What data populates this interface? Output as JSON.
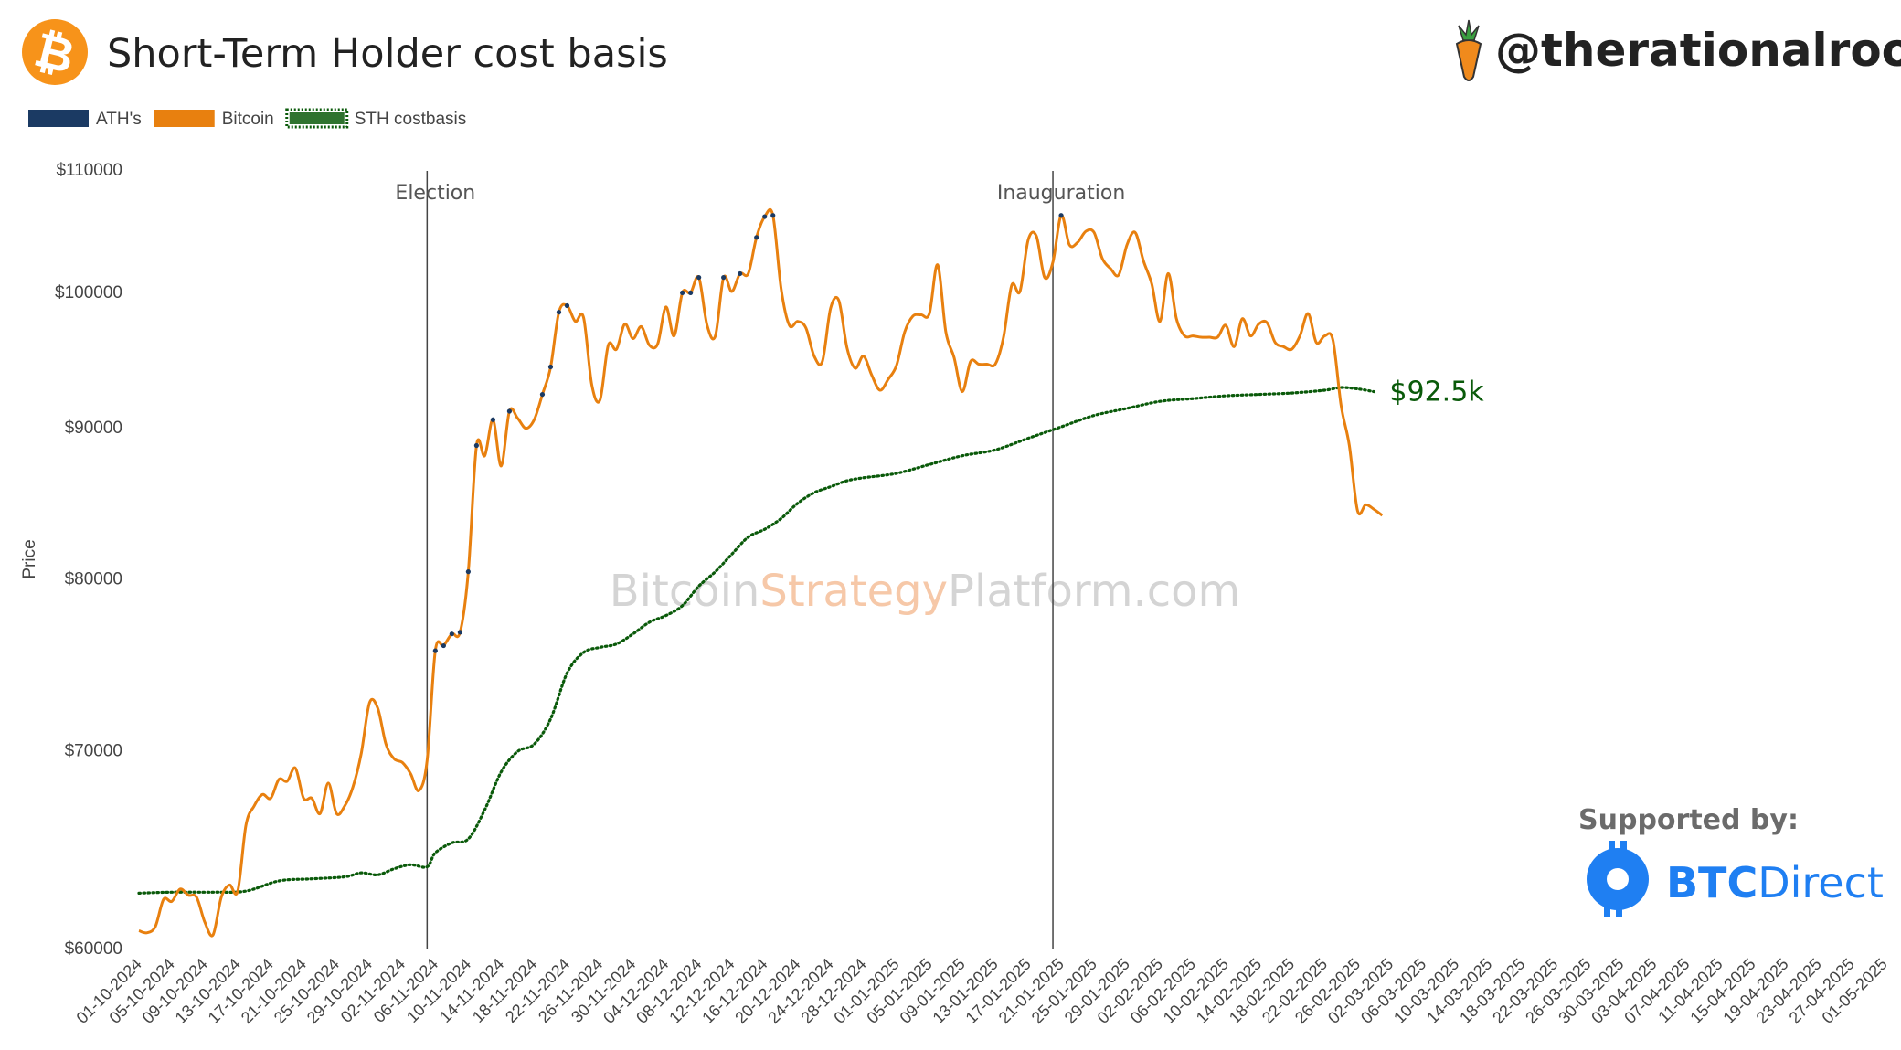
{
  "header": {
    "title": "Short-Term Holder cost basis",
    "logo_icon": "bitcoin-logo-icon",
    "handle": "@therationalroot",
    "handle_icon": "carrot-icon"
  },
  "watermark": {
    "parts": [
      "Bitcoin",
      "Strategy",
      "Platform",
      ".com"
    ]
  },
  "sponsor": {
    "supported_label": "Supported by:",
    "name_part1": "BTC",
    "name_part2": "Direct",
    "icon": "btcdirect-logo-icon"
  },
  "colors": {
    "bitcoin": "#e8800f",
    "sth": "#0a5a0a",
    "ath": "#1b3a63",
    "accent_orange": "#f7931a",
    "sponsor_blue": "#1f7ff2"
  },
  "chart_data": {
    "type": "line",
    "title": "Short-Term Holder cost basis",
    "ylabel": "Price",
    "xlabel": "",
    "y_scale": "log",
    "ylim": [
      60000,
      110000
    ],
    "yticks": [
      60000,
      70000,
      80000,
      90000,
      100000,
      110000
    ],
    "ytick_labels": [
      "$60000",
      "$70000",
      "$80000",
      "$90000",
      "$100000",
      "$110000"
    ],
    "xlim": [
      "2024-10-01",
      "2025-05-01"
    ],
    "xtick_labels": [
      "01-10-2024",
      "05-10-2024",
      "09-10-2024",
      "13-10-2024",
      "17-10-2024",
      "21-10-2024",
      "25-10-2024",
      "29-10-2024",
      "02-11-2024",
      "06-11-2024",
      "10-11-2024",
      "14-11-2024",
      "18-11-2024",
      "22-11-2024",
      "26-11-2024",
      "30-11-2024",
      "04-12-2024",
      "08-12-2024",
      "12-12-2024",
      "16-12-2024",
      "20-12-2024",
      "24-12-2024",
      "28-12-2024",
      "01-01-2025",
      "05-01-2025",
      "09-01-2025",
      "13-01-2025",
      "17-01-2025",
      "21-01-2025",
      "25-01-2025",
      "29-01-2025",
      "02-02-2025",
      "06-02-2025",
      "10-02-2025",
      "14-02-2025",
      "18-02-2025",
      "22-02-2025",
      "26-02-2025",
      "02-03-2025",
      "06-03-2025",
      "10-03-2025",
      "14-03-2025",
      "18-03-2025",
      "22-03-2025",
      "26-03-2025",
      "30-03-2025",
      "03-04-2025",
      "07-04-2025",
      "11-04-2025",
      "15-04-2025",
      "19-04-2025",
      "23-04-2025",
      "27-04-2025",
      "01-05-2025"
    ],
    "legend": {
      "placement": "top-left",
      "entries": [
        {
          "name": "ATH's",
          "color": "#1b3a63",
          "style": "solid"
        },
        {
          "name": "Bitcoin",
          "color": "#e8800f",
          "style": "solid"
        },
        {
          "name": "STH costbasis",
          "color": "#0a5a0a",
          "style": "dotted"
        }
      ]
    },
    "annotations": [
      {
        "label": "Election",
        "x": "2024-11-05"
      },
      {
        "label": "Inauguration",
        "x": "2025-01-20"
      }
    ],
    "end_label": {
      "text": "$92.5k",
      "series": "STH costbasis"
    },
    "series": [
      {
        "name": "Bitcoin",
        "color": "#e8800f",
        "points": [
          [
            "2024-10-01",
            60800
          ],
          [
            "2024-10-02",
            60700
          ],
          [
            "2024-10-03",
            61000
          ],
          [
            "2024-10-04",
            62300
          ],
          [
            "2024-10-05",
            62200
          ],
          [
            "2024-10-06",
            62800
          ],
          [
            "2024-10-07",
            62500
          ],
          [
            "2024-10-08",
            62400
          ],
          [
            "2024-10-09",
            61200
          ],
          [
            "2024-10-10",
            60600
          ],
          [
            "2024-10-11",
            62400
          ],
          [
            "2024-10-12",
            63000
          ],
          [
            "2024-10-13",
            62700
          ],
          [
            "2024-10-14",
            66000
          ],
          [
            "2024-10-15",
            67000
          ],
          [
            "2024-10-16",
            67600
          ],
          [
            "2024-10-17",
            67400
          ],
          [
            "2024-10-18",
            68400
          ],
          [
            "2024-10-19",
            68300
          ],
          [
            "2024-10-20",
            69000
          ],
          [
            "2024-10-21",
            67400
          ],
          [
            "2024-10-22",
            67400
          ],
          [
            "2024-10-23",
            66600
          ],
          [
            "2024-10-24",
            68200
          ],
          [
            "2024-10-25",
            66600
          ],
          [
            "2024-10-26",
            67000
          ],
          [
            "2024-10-27",
            68000
          ],
          [
            "2024-10-28",
            69800
          ],
          [
            "2024-10-29",
            72600
          ],
          [
            "2024-10-30",
            72300
          ],
          [
            "2024-10-31",
            70300
          ],
          [
            "2024-11-01",
            69500
          ],
          [
            "2024-11-02",
            69300
          ],
          [
            "2024-11-03",
            68700
          ],
          [
            "2024-11-04",
            67800
          ],
          [
            "2024-11-05",
            69400
          ],
          [
            "2024-11-06",
            75600
          ],
          [
            "2024-11-07",
            75900
          ],
          [
            "2024-11-08",
            76600
          ],
          [
            "2024-11-09",
            76700
          ],
          [
            "2024-11-10",
            80400
          ],
          [
            "2024-11-11",
            88700
          ],
          [
            "2024-11-12",
            88000
          ],
          [
            "2024-11-13",
            90500
          ],
          [
            "2024-11-14",
            87300
          ],
          [
            "2024-11-15",
            91100
          ],
          [
            "2024-11-16",
            90600
          ],
          [
            "2024-11-17",
            89900
          ],
          [
            "2024-11-18",
            90500
          ],
          [
            "2024-11-19",
            92300
          ],
          [
            "2024-11-20",
            94300
          ],
          [
            "2024-11-21",
            98400
          ],
          [
            "2024-11-22",
            98900
          ],
          [
            "2024-11-23",
            97700
          ],
          [
            "2024-11-24",
            98000
          ],
          [
            "2024-11-25",
            93000
          ],
          [
            "2024-11-26",
            91900
          ],
          [
            "2024-11-27",
            95900
          ],
          [
            "2024-11-28",
            95600
          ],
          [
            "2024-11-29",
            97500
          ],
          [
            "2024-11-30",
            96400
          ],
          [
            "2024-12-01",
            97300
          ],
          [
            "2024-12-02",
            95900
          ],
          [
            "2024-12-03",
            96000
          ],
          [
            "2024-12-04",
            98800
          ],
          [
            "2024-12-05",
            96600
          ],
          [
            "2024-12-06",
            99900
          ],
          [
            "2024-12-07",
            99900
          ],
          [
            "2024-12-08",
            101100
          ],
          [
            "2024-12-09",
            97400
          ],
          [
            "2024-12-10",
            96600
          ],
          [
            "2024-12-11",
            101100
          ],
          [
            "2024-12-12",
            100000
          ],
          [
            "2024-12-13",
            101400
          ],
          [
            "2024-12-14",
            101400
          ],
          [
            "2024-12-15",
            104300
          ],
          [
            "2024-12-16",
            106000
          ],
          [
            "2024-12-17",
            106100
          ],
          [
            "2024-12-18",
            100200
          ],
          [
            "2024-12-19",
            97400
          ],
          [
            "2024-12-20",
            97700
          ],
          [
            "2024-12-21",
            97200
          ],
          [
            "2024-12-22",
            95100
          ],
          [
            "2024-12-23",
            94700
          ],
          [
            "2024-12-24",
            98700
          ],
          [
            "2024-12-25",
            99300
          ],
          [
            "2024-12-26",
            95700
          ],
          [
            "2024-12-27",
            94200
          ],
          [
            "2024-12-28",
            95100
          ],
          [
            "2024-12-29",
            93700
          ],
          [
            "2024-12-30",
            92600
          ],
          [
            "2024-12-31",
            93400
          ],
          [
            "2025-01-01",
            94400
          ],
          [
            "2025-01-02",
            96900
          ],
          [
            "2025-01-03",
            98100
          ],
          [
            "2025-01-04",
            98200
          ],
          [
            "2025-01-05",
            98300
          ],
          [
            "2025-01-06",
            102100
          ],
          [
            "2025-01-07",
            96900
          ],
          [
            "2025-01-08",
            95000
          ],
          [
            "2025-01-09",
            92500
          ],
          [
            "2025-01-10",
            94700
          ],
          [
            "2025-01-11",
            94500
          ],
          [
            "2025-01-12",
            94500
          ],
          [
            "2025-01-13",
            94500
          ],
          [
            "2025-01-14",
            96500
          ],
          [
            "2025-01-15",
            100500
          ],
          [
            "2025-01-16",
            100000
          ],
          [
            "2025-01-17",
            104100
          ],
          [
            "2025-01-18",
            104400
          ],
          [
            "2025-01-19",
            101100
          ],
          [
            "2025-01-20",
            102300
          ],
          [
            "2025-01-21",
            106100
          ],
          [
            "2025-01-22",
            103700
          ],
          [
            "2025-01-23",
            103900
          ],
          [
            "2025-01-24",
            104800
          ],
          [
            "2025-01-25",
            104700
          ],
          [
            "2025-01-26",
            102600
          ],
          [
            "2025-01-27",
            101800
          ],
          [
            "2025-01-28",
            101300
          ],
          [
            "2025-01-29",
            103700
          ],
          [
            "2025-01-30",
            104700
          ],
          [
            "2025-01-31",
            102400
          ],
          [
            "2025-02-01",
            100600
          ],
          [
            "2025-02-02",
            97700
          ],
          [
            "2025-02-03",
            101400
          ],
          [
            "2025-02-04",
            97900
          ],
          [
            "2025-02-05",
            96600
          ],
          [
            "2025-02-06",
            96600
          ],
          [
            "2025-02-07",
            96500
          ],
          [
            "2025-02-08",
            96500
          ],
          [
            "2025-02-09",
            96500
          ],
          [
            "2025-02-10",
            97400
          ],
          [
            "2025-02-11",
            95800
          ],
          [
            "2025-02-12",
            97900
          ],
          [
            "2025-02-13",
            96600
          ],
          [
            "2025-02-14",
            97500
          ],
          [
            "2025-02-15",
            97600
          ],
          [
            "2025-02-16",
            96100
          ],
          [
            "2025-02-17",
            95800
          ],
          [
            "2025-02-18",
            95600
          ],
          [
            "2025-02-19",
            96600
          ],
          [
            "2025-02-20",
            98300
          ],
          [
            "2025-02-21",
            96100
          ],
          [
            "2025-02-22",
            96600
          ],
          [
            "2025-02-23",
            96300
          ],
          [
            "2025-02-24",
            91500
          ],
          [
            "2025-02-25",
            88700
          ],
          [
            "2025-02-26",
            84300
          ],
          [
            "2025-02-27",
            84700
          ],
          [
            "2025-02-28",
            84400
          ],
          [
            "2025-03-01",
            84000
          ]
        ]
      },
      {
        "name": "STH costbasis",
        "color": "#0a5a0a",
        "points": [
          [
            "2024-10-01",
            62600
          ],
          [
            "2024-10-05",
            62650
          ],
          [
            "2024-10-10",
            62650
          ],
          [
            "2024-10-14",
            62700
          ],
          [
            "2024-10-18",
            63200
          ],
          [
            "2024-10-22",
            63300
          ],
          [
            "2024-10-26",
            63400
          ],
          [
            "2024-10-28",
            63600
          ],
          [
            "2024-10-30",
            63500
          ],
          [
            "2024-11-01",
            63800
          ],
          [
            "2024-11-03",
            64000
          ],
          [
            "2024-11-05",
            63900
          ],
          [
            "2024-11-06",
            64600
          ],
          [
            "2024-11-08",
            65100
          ],
          [
            "2024-11-10",
            65300
          ],
          [
            "2024-11-12",
            66800
          ],
          [
            "2024-11-14",
            68800
          ],
          [
            "2024-11-16",
            69900
          ],
          [
            "2024-11-18",
            70300
          ],
          [
            "2024-11-20",
            71700
          ],
          [
            "2024-11-22",
            74300
          ],
          [
            "2024-11-24",
            75500
          ],
          [
            "2024-11-26",
            75800
          ],
          [
            "2024-11-28",
            76000
          ],
          [
            "2024-11-30",
            76600
          ],
          [
            "2024-12-02",
            77300
          ],
          [
            "2024-12-04",
            77700
          ],
          [
            "2024-12-06",
            78300
          ],
          [
            "2024-12-08",
            79500
          ],
          [
            "2024-12-10",
            80400
          ],
          [
            "2024-12-12",
            81500
          ],
          [
            "2024-12-14",
            82600
          ],
          [
            "2024-12-16",
            83100
          ],
          [
            "2024-12-18",
            83800
          ],
          [
            "2024-12-20",
            84800
          ],
          [
            "2024-12-22",
            85500
          ],
          [
            "2024-12-24",
            85900
          ],
          [
            "2024-12-26",
            86300
          ],
          [
            "2024-12-28",
            86500
          ],
          [
            "2025-01-01",
            86800
          ],
          [
            "2025-01-05",
            87400
          ],
          [
            "2025-01-09",
            88000
          ],
          [
            "2025-01-13",
            88400
          ],
          [
            "2025-01-17",
            89200
          ],
          [
            "2025-01-21",
            90000
          ],
          [
            "2025-01-25",
            90800
          ],
          [
            "2025-01-29",
            91300
          ],
          [
            "2025-02-02",
            91800
          ],
          [
            "2025-02-06",
            92000
          ],
          [
            "2025-02-10",
            92200
          ],
          [
            "2025-02-14",
            92300
          ],
          [
            "2025-02-18",
            92400
          ],
          [
            "2025-02-22",
            92600
          ],
          [
            "2025-02-24",
            92800
          ],
          [
            "2025-02-26",
            92700
          ],
          [
            "2025-02-28",
            92500
          ]
        ]
      }
    ],
    "ath_points": [
      "2024-11-06",
      "2024-11-07",
      "2024-11-08",
      "2024-11-09",
      "2024-11-10",
      "2024-11-11",
      "2024-11-13",
      "2024-11-15",
      "2024-11-19",
      "2024-11-20",
      "2024-11-21",
      "2024-11-22",
      "2024-12-06",
      "2024-12-07",
      "2024-12-08",
      "2024-12-11",
      "2024-12-13",
      "2024-12-15",
      "2024-12-16",
      "2024-12-17",
      "2025-01-21"
    ]
  }
}
